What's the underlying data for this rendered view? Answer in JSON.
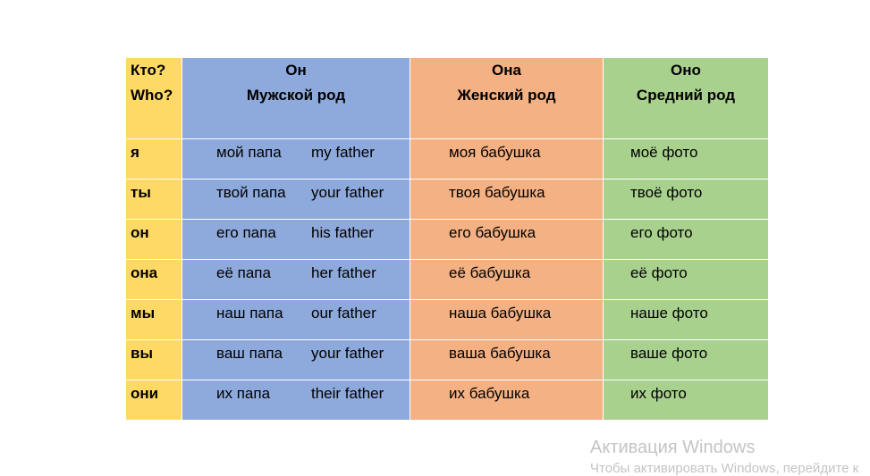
{
  "header": {
    "who_ru": "Кто?",
    "who_en": "Who?",
    "masculine": {
      "pronoun": "Он",
      "gender": "Мужской род"
    },
    "feminine": {
      "pronoun": "Она",
      "gender": "Женский род"
    },
    "neuter": {
      "pronoun": "Оно",
      "gender": "Средний род"
    }
  },
  "rows": [
    {
      "who": "я",
      "masc_ru": "мой папа",
      "masc_en": "my father",
      "fem": "моя бабушка",
      "neut": "моё фото"
    },
    {
      "who": "ты",
      "masc_ru": "твой папа",
      "masc_en": "your father",
      "fem": "твоя бабушка",
      "neut": "твоё фото"
    },
    {
      "who": "он",
      "masc_ru": "его папа",
      "masc_en": "his father",
      "fem": "его бабушка",
      "neut": "его фото"
    },
    {
      "who": "она",
      "masc_ru": "её папа",
      "masc_en": "her father",
      "fem": "её бабушка",
      "neut": "её фото"
    },
    {
      "who": "мы",
      "masc_ru": "наш папа",
      "masc_en": "our father",
      "fem": "наша бабушка",
      "neut": "наше фото"
    },
    {
      "who": "вы",
      "masc_ru": "ваш папа",
      "masc_en": "your father",
      "fem": "ваша бабушка",
      "neut": "ваше фото"
    },
    {
      "who": "они",
      "masc_ru": "их папа",
      "masc_en": "their father",
      "fem": "их бабушка",
      "neut": "их фото"
    }
  ],
  "watermark": {
    "title": "Активация Windows",
    "subtitle": "Чтобы активировать Windows, перейдите к"
  },
  "colors": {
    "who": "#FFD966",
    "masculine": "#8EA9DB",
    "feminine": "#F4B183",
    "neuter": "#A9D18E"
  }
}
